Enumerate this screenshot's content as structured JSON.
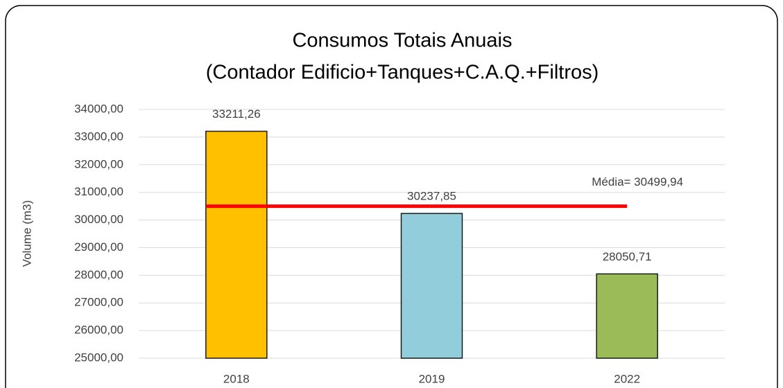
{
  "chart_data": {
    "type": "bar",
    "title": "Consumos Totais Anuais",
    "subtitle": "(Contador Edificio+Tanques+C.A.Q.+Filtros)",
    "y_label": "Volume (m3)",
    "categories": [
      "2018",
      "2019",
      "2022"
    ],
    "values": [
      33211.26,
      30237.85,
      28050.71
    ],
    "value_labels": [
      "33211,26",
      "30237,85",
      "28050,71"
    ],
    "colors": [
      "#FFC000",
      "#92CDDC",
      "#9BBB59"
    ],
    "ylim": [
      25000,
      34000
    ],
    "yticks": [
      {
        "value": 25000,
        "label": "25000,00"
      },
      {
        "value": 26000,
        "label": "26000,00"
      },
      {
        "value": 27000,
        "label": "27000,00"
      },
      {
        "value": 28000,
        "label": "28000,00"
      },
      {
        "value": 29000,
        "label": "29000,00"
      },
      {
        "value": 30000,
        "label": "30000,00"
      },
      {
        "value": 31000,
        "label": "31000,00"
      },
      {
        "value": 32000,
        "label": "32000,00"
      },
      {
        "value": 33000,
        "label": "33000,00"
      },
      {
        "value": 34000,
        "label": "34000,00"
      }
    ],
    "grid": true,
    "average": {
      "value": 30499.94,
      "label": "Média= 30499,94",
      "color": "#FF0000"
    }
  }
}
